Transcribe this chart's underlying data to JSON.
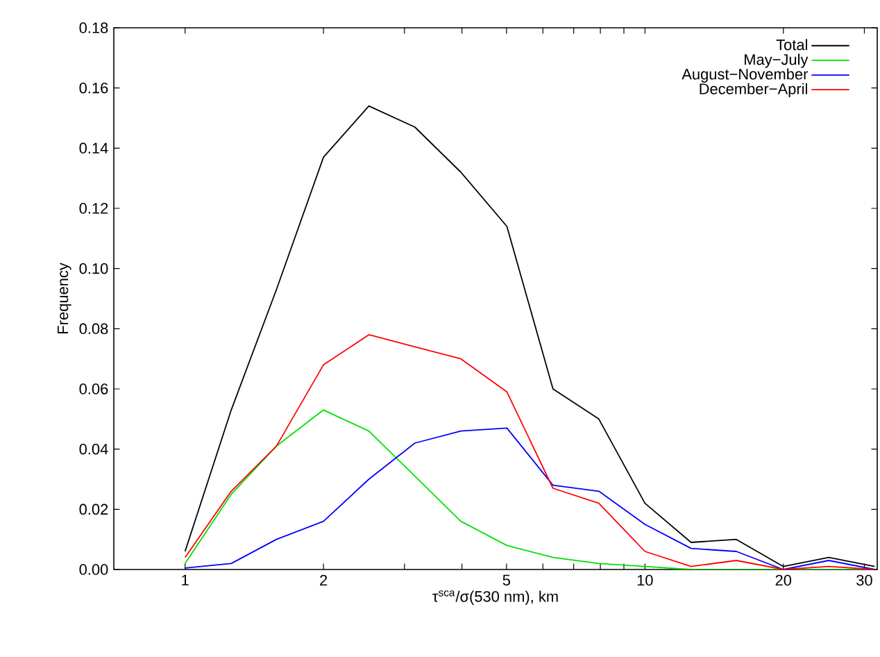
{
  "chart_data": {
    "type": "line",
    "xlabel": "τ$^{sca}$/σ(530 nm), km",
    "ylabel": "Frequency",
    "log": "x",
    "xlim": [
      0.7,
      32
    ],
    "ylim": [
      0,
      0.18
    ],
    "xticks": [
      1,
      2,
      {
        "value": 3,
        "label": null
      },
      {
        "value": 4,
        "label": null
      },
      5,
      {
        "value": 6,
        "label": null
      },
      {
        "value": 7,
        "label": null
      },
      {
        "value": 8,
        "label": null
      },
      {
        "value": 9,
        "label": null
      },
      10,
      20,
      30
    ],
    "yticks": [
      {
        "value": 0,
        "label": "0.00"
      },
      {
        "value": 0.02,
        "label": "0.02"
      },
      {
        "value": 0.04,
        "label": "0.04"
      },
      {
        "value": 0.06,
        "label": "0.06"
      },
      {
        "value": 0.08,
        "label": "0.08"
      },
      {
        "value": 0.1,
        "label": "0.10"
      },
      {
        "value": 0.12,
        "label": "0.12"
      },
      {
        "value": 0.14,
        "label": "0.14"
      },
      {
        "value": 0.16,
        "label": "0.16"
      },
      {
        "value": 0.18,
        "label": "0.18"
      }
    ],
    "x": [
      1,
      1.26,
      1.58,
      2,
      2.51,
      3.16,
      3.98,
      5.01,
      6.31,
      7.94,
      10,
      12.6,
      15.8,
      20,
      25.1,
      31.6
    ],
    "legend": "top right",
    "grid": false,
    "marker": "none",
    "line_style": "solid",
    "series": [
      {
        "name": "Total",
        "color": "#000000",
        "values": [
          0.006,
          0.053,
          0.093,
          0.137,
          0.154,
          0.147,
          0.132,
          0.114,
          0.06,
          0.05,
          0.022,
          0.009,
          0.01,
          0.001,
          0.004,
          0.001
        ]
      },
      {
        "name": "May−July",
        "color": "#00e000",
        "values": [
          0.002,
          0.025,
          0.041,
          0.053,
          0.046,
          0.031,
          0.016,
          0.008,
          0.004,
          0.002,
          0.001,
          0.0,
          0.0,
          0.0,
          0.0,
          0.0
        ]
      },
      {
        "name": "August−November",
        "color": "#0000ff",
        "values": [
          0.0005,
          0.002,
          0.01,
          0.016,
          0.03,
          0.042,
          0.046,
          0.047,
          0.028,
          0.026,
          0.015,
          0.007,
          0.006,
          0.0,
          0.003,
          0.0
        ]
      },
      {
        "name": "December−April",
        "color": "#ff0000",
        "values": [
          0.004,
          0.026,
          0.041,
          0.068,
          0.078,
          0.074,
          0.07,
          0.059,
          0.027,
          0.022,
          0.006,
          0.001,
          0.003,
          0.0,
          0.001,
          0.0
        ]
      }
    ]
  }
}
